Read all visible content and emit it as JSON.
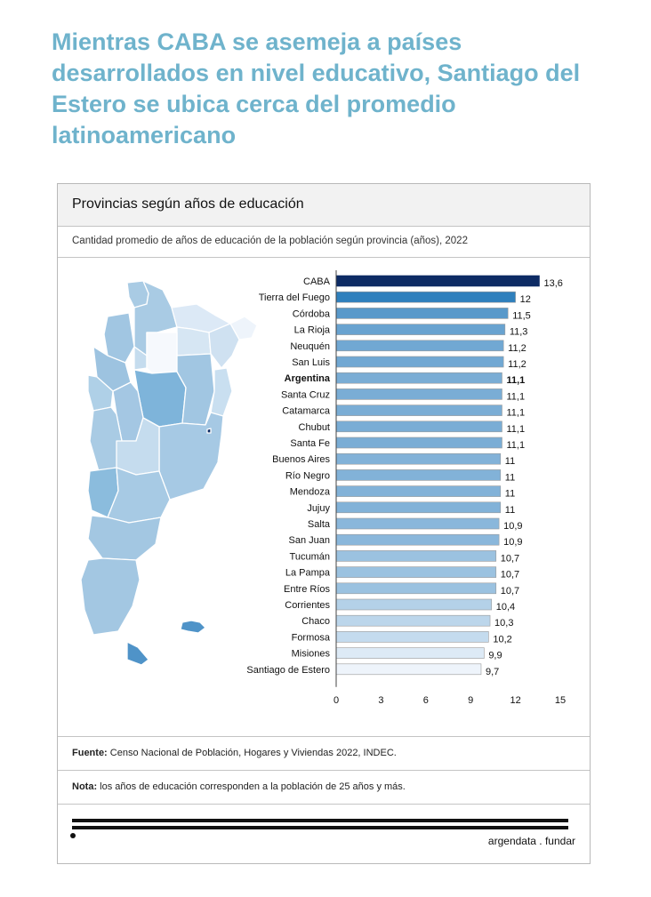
{
  "headline": "Mientras CABA se asemeja a países desarrollados en nivel educativo, Santiago del Estero se ubica cerca del promedio latinoamericano",
  "card": {
    "title": "Provincias según años de educación",
    "subtitle": "Cantidad promedio de años de educación de la población según provincia (años), 2022",
    "source_label": "Fuente:",
    "source_text": " Censo Nacional de Población, Hogares y Viviendas 2022, INDEC.",
    "note_label": "Nota:",
    "note_text": " los años de educación corresponden a la población de 25 años y más."
  },
  "brand": "argendata . fundar",
  "colors": {
    "highlight": "#0d2b64",
    "scale_low": "#eef4fb",
    "scale_high": "#2f80bd",
    "bar_border": "#9a9a9a"
  },
  "chart_data": {
    "type": "bar",
    "orientation": "horizontal",
    "categories": [
      "CABA",
      "Tierra del Fuego",
      "Córdoba",
      "La Rioja",
      "Neuquén",
      "San Luis",
      "Argentina",
      "Santa Cruz",
      "Catamarca",
      "Chubut",
      "Santa Fe",
      "Buenos Aires",
      "Río Negro",
      "Mendoza",
      "Jujuy",
      "Salta",
      "San Juan",
      "Tucumán",
      "La Pampa",
      "Entre Ríos",
      "Corrientes",
      "Chaco",
      "Formosa",
      "Misiones",
      "Santiago de Estero"
    ],
    "values": [
      13.6,
      12,
      11.5,
      11.3,
      11.2,
      11.2,
      11.1,
      11.1,
      11.1,
      11.1,
      11.1,
      11,
      11,
      11,
      11,
      10.9,
      10.9,
      10.7,
      10.7,
      10.7,
      10.4,
      10.3,
      10.2,
      9.9,
      9.7
    ],
    "value_labels": [
      "13,6",
      "12",
      "11,5",
      "11,3",
      "11,2",
      "11,2",
      "11,1",
      "11,1",
      "11,1",
      "11,1",
      "11,1",
      "11",
      "11",
      "11",
      "11",
      "10,9",
      "10,9",
      "10,7",
      "10,7",
      "10,7",
      "10,4",
      "10,3",
      "10,2",
      "9,9",
      "9,7"
    ],
    "bold_category": "Argentina",
    "xlim": [
      0,
      15
    ],
    "xticks": [
      0,
      3,
      6,
      9,
      12,
      15
    ],
    "grid": false,
    "map": "choropleth map of Argentina provinces shaded by the same values"
  }
}
